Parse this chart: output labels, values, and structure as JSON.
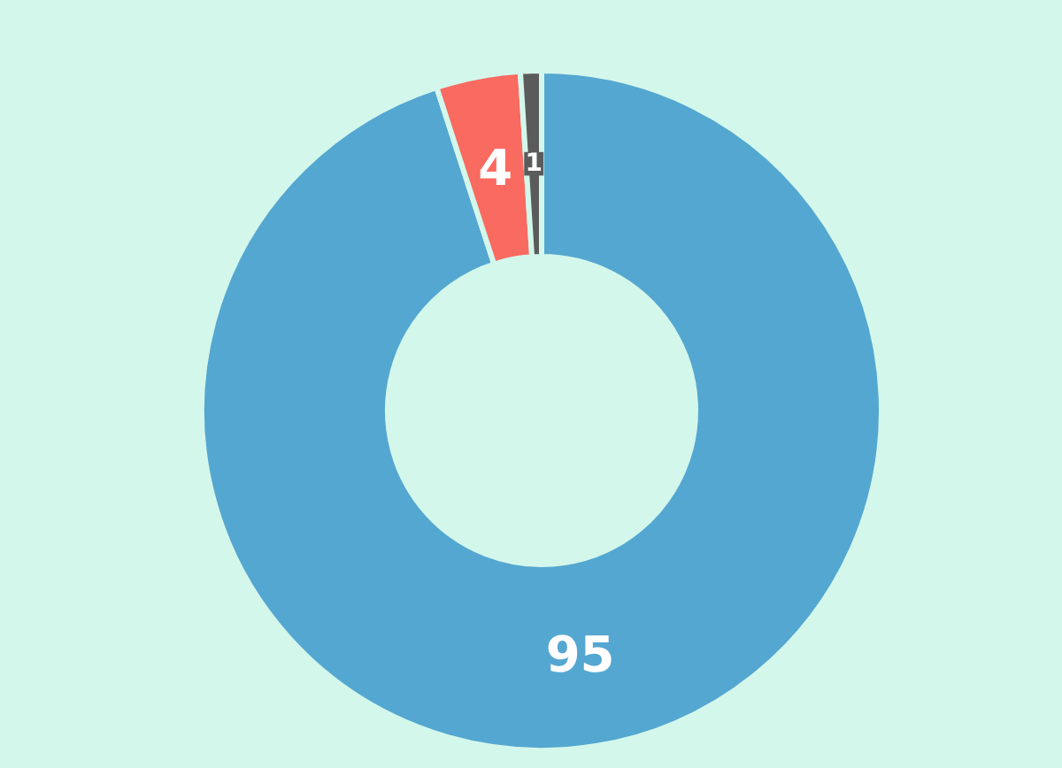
{
  "chart_data": {
    "type": "donut",
    "categories": [
      null,
      null,
      null
    ],
    "values": [
      95,
      4,
      1
    ],
    "colors": [
      "#54a7d0",
      "#f96a60",
      "#5b5b5b"
    ],
    "data_labels": true
  }
}
